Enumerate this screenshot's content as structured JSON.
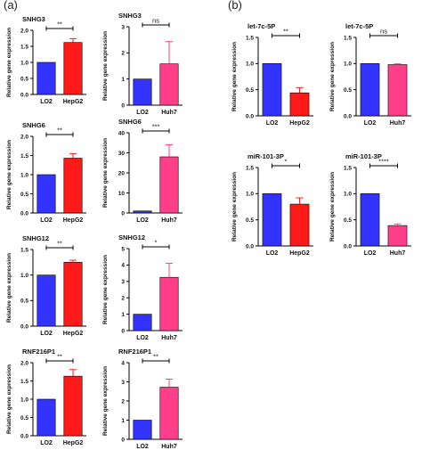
{
  "panel_labels": [
    "(a)",
    "(b)"
  ],
  "colors": {
    "LO2": "#3333ff",
    "HepG2": "#ff1a1a",
    "Huh7": "#ff3f8a",
    "axis": "#000000"
  },
  "chart_data": [
    {
      "type": "bar",
      "panel": "(a)",
      "title": "SNHG3",
      "ylabel": "Relative gene expression",
      "categories": [
        "LO2",
        "HepG2"
      ],
      "values": [
        1.0,
        1.62
      ],
      "errors": [
        0,
        0.12
      ],
      "ylim": [
        0,
        2
      ],
      "yticks": [
        "0.0",
        "0.5",
        "1.0",
        "1.5",
        "2.0"
      ],
      "significance": "**"
    },
    {
      "type": "bar",
      "panel": "(a)",
      "title": "SNHG3",
      "ylabel": "Relative gene expression",
      "categories": [
        "LO2",
        "Huh7"
      ],
      "values": [
        1.0,
        1.58
      ],
      "errors": [
        0,
        0.85
      ],
      "ylim": [
        0,
        3
      ],
      "yticks": [
        "0",
        "1",
        "2",
        "3"
      ],
      "significance": "ns"
    },
    {
      "type": "bar",
      "panel": "(a)",
      "title": "SNHG6",
      "ylabel": "Relative gene expression",
      "categories": [
        "LO2",
        "HepG2"
      ],
      "values": [
        1.0,
        1.43
      ],
      "errors": [
        0,
        0.12
      ],
      "ylim": [
        0,
        2
      ],
      "yticks": [
        "0.0",
        "0.5",
        "1.0",
        "1.5",
        "2.0"
      ],
      "significance": "**"
    },
    {
      "type": "bar",
      "panel": "(a)",
      "title": "SNHG6",
      "ylabel": "Relative gene expression",
      "categories": [
        "LO2",
        "Huh7"
      ],
      "values": [
        1.0,
        28
      ],
      "errors": [
        0,
        6
      ],
      "ylim": [
        0,
        40
      ],
      "yticks": [
        "0",
        "10",
        "20",
        "30",
        "40"
      ],
      "significance": "***"
    },
    {
      "type": "bar",
      "panel": "(a)",
      "title": "SNHG12",
      "ylabel": "Relative gene expression",
      "categories": [
        "LO2",
        "HepG2"
      ],
      "values": [
        1.0,
        1.25
      ],
      "errors": [
        0,
        0.04
      ],
      "ylim": [
        0,
        1.5
      ],
      "yticks": [
        "0.0",
        "0.5",
        "1.0",
        "1.5"
      ],
      "significance": "**"
    },
    {
      "type": "bar",
      "panel": "(a)",
      "title": "SNHG12",
      "ylabel": "Relative gene expression",
      "categories": [
        "LO2",
        "Huh7"
      ],
      "values": [
        1.0,
        3.25
      ],
      "errors": [
        0,
        0.85
      ],
      "ylim": [
        0,
        5
      ],
      "yticks": [
        "0",
        "1",
        "2",
        "3",
        "4",
        "5"
      ],
      "significance": "*"
    },
    {
      "type": "bar",
      "panel": "(a)",
      "title": "RNF216P1",
      "ylabel": "Relative gene expression",
      "categories": [
        "LO2",
        "HepG2"
      ],
      "values": [
        1.0,
        1.63
      ],
      "errors": [
        0,
        0.18
      ],
      "ylim": [
        0,
        2
      ],
      "yticks": [
        "0.0",
        "0.5",
        "1.0",
        "1.5",
        "2.0"
      ],
      "significance": "**"
    },
    {
      "type": "bar",
      "panel": "(a)",
      "title": "RNF216P1",
      "ylabel": "Relative gene expression",
      "categories": [
        "LO2",
        "Huh7"
      ],
      "values": [
        1.0,
        2.72
      ],
      "errors": [
        0,
        0.42
      ],
      "ylim": [
        0,
        4
      ],
      "yticks": [
        "0",
        "1",
        "2",
        "3",
        "4"
      ],
      "significance": "**"
    },
    {
      "type": "bar",
      "panel": "(b)",
      "title": "let-7c-5P",
      "ylabel": "Relative gene expression",
      "categories": [
        "LO2",
        "HepG2"
      ],
      "values": [
        1.0,
        0.44
      ],
      "errors": [
        0,
        0.1
      ],
      "ylim": [
        0,
        1.5
      ],
      "yticks": [
        "0.0",
        "0.5",
        "1.0",
        "1.5"
      ],
      "significance": "**"
    },
    {
      "type": "bar",
      "panel": "(b)",
      "title": "let-7c-5P",
      "ylabel": "Relative gene expression",
      "categories": [
        "LO2",
        "Huh7"
      ],
      "values": [
        1.0,
        0.98
      ],
      "errors": [
        0,
        0.015
      ],
      "ylim": [
        0,
        1.5
      ],
      "yticks": [
        "0.0",
        "0.5",
        "1.0",
        "1.5"
      ],
      "significance": "ns"
    },
    {
      "type": "bar",
      "panel": "(b)",
      "title": "miR-101-3P",
      "ylabel": "Relative gene expression",
      "categories": [
        "LO2",
        "HepG2"
      ],
      "values": [
        1.0,
        0.8
      ],
      "errors": [
        0,
        0.12
      ],
      "ylim": [
        0,
        1.5
      ],
      "yticks": [
        "0.0",
        "0.5",
        "1.0",
        "1.5"
      ],
      "significance": "*"
    },
    {
      "type": "bar",
      "panel": "(b)",
      "title": "miR-101-3P",
      "ylabel": "Relative gene expression",
      "categories": [
        "LO2",
        "Huh7"
      ],
      "values": [
        1.0,
        0.39
      ],
      "errors": [
        0,
        0.03
      ],
      "ylim": [
        0,
        1.5
      ],
      "yticks": [
        "0.0",
        "0.5",
        "1.0",
        "1.5"
      ],
      "significance": "****"
    }
  ]
}
